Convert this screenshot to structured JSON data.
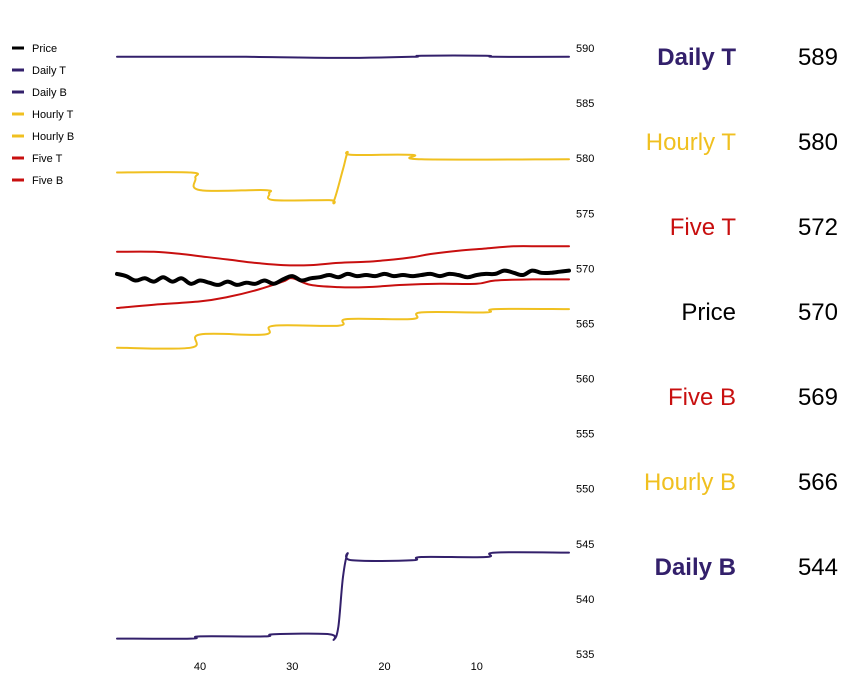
{
  "chart_data": {
    "type": "line",
    "title": "",
    "xlabel": "",
    "ylabel": "",
    "x_reversed": true,
    "xlim": [
      49,
      0
    ],
    "ylim": [
      535,
      590
    ],
    "grid": false,
    "legend_placement": "top-left",
    "y_axis_side": "right",
    "x_ticks": [
      40,
      30,
      20,
      10
    ],
    "y_ticks": [
      590,
      585,
      580,
      575,
      570,
      565,
      560,
      555,
      550,
      545,
      540,
      535
    ],
    "colors": {
      "price": "#000000",
      "daily": "#33206b",
      "hourly": "#f0c020",
      "five": "#c80f0f"
    },
    "series": [
      {
        "name": "Price",
        "key": "price",
        "stroke_width": 4,
        "points": [
          [
            49,
            569.5
          ],
          [
            48,
            569.3
          ],
          [
            47,
            568.9
          ],
          [
            46,
            569.1
          ],
          [
            45,
            568.8
          ],
          [
            44,
            569.2
          ],
          [
            43,
            568.8
          ],
          [
            42,
            569.1
          ],
          [
            41,
            568.6
          ],
          [
            40,
            568.9
          ],
          [
            39,
            568.7
          ],
          [
            38,
            568.5
          ],
          [
            37,
            568.8
          ],
          [
            36,
            568.5
          ],
          [
            35,
            568.7
          ],
          [
            34,
            568.6
          ],
          [
            33,
            568.9
          ],
          [
            32,
            568.6
          ],
          [
            31,
            569.0
          ],
          [
            30,
            569.3
          ],
          [
            29,
            568.9
          ],
          [
            28,
            569.1
          ],
          [
            27,
            569.2
          ],
          [
            26,
            569.4
          ],
          [
            25,
            569.2
          ],
          [
            24,
            569.5
          ],
          [
            23,
            569.3
          ],
          [
            22,
            569.4
          ],
          [
            21,
            569.3
          ],
          [
            20,
            569.5
          ],
          [
            19,
            569.3
          ],
          [
            18,
            569.4
          ],
          [
            17,
            569.3
          ],
          [
            16,
            569.4
          ],
          [
            15,
            569.5
          ],
          [
            14,
            569.3
          ],
          [
            13,
            569.5
          ],
          [
            12,
            569.4
          ],
          [
            11,
            569.2
          ],
          [
            10,
            569.4
          ],
          [
            9,
            569.5
          ],
          [
            8,
            569.5
          ],
          [
            7,
            569.8
          ],
          [
            6,
            569.6
          ],
          [
            5,
            569.4
          ],
          [
            4,
            569.8
          ],
          [
            3,
            569.6
          ],
          [
            2,
            569.6
          ],
          [
            1,
            569.7
          ],
          [
            0,
            569.8
          ]
        ]
      },
      {
        "name": "Daily T",
        "key": "daily",
        "stroke_width": 2,
        "points": [
          [
            49,
            589.2
          ],
          [
            40,
            589.2
          ],
          [
            35,
            589.2
          ],
          [
            25,
            589.1
          ],
          [
            17,
            589.2
          ],
          [
            16,
            589.3
          ],
          [
            9,
            589.3
          ],
          [
            8,
            589.2
          ],
          [
            0,
            589.2
          ]
        ]
      },
      {
        "name": "Daily B",
        "key": "daily",
        "stroke_width": 2,
        "points": [
          [
            49,
            536.4
          ],
          [
            41,
            536.4
          ],
          [
            40,
            536.6
          ],
          [
            33,
            536.6
          ],
          [
            32,
            536.8
          ],
          [
            26,
            536.8
          ],
          [
            25.5,
            536.3
          ],
          [
            25,
            537.5
          ],
          [
            24.5,
            542
          ],
          [
            24,
            544.1
          ],
          [
            23.5,
            543.5
          ],
          [
            17,
            543.5
          ],
          [
            16,
            543.8
          ],
          [
            9,
            543.8
          ],
          [
            8,
            544.2
          ],
          [
            0,
            544.2
          ]
        ]
      },
      {
        "name": "Hourly T",
        "key": "hourly",
        "stroke_width": 2,
        "points": [
          [
            49,
            578.7
          ],
          [
            41,
            578.7
          ],
          [
            40.5,
            578.2
          ],
          [
            40,
            577.1
          ],
          [
            33,
            577.1
          ],
          [
            32.5,
            576.8
          ],
          [
            32,
            576.2
          ],
          [
            26,
            576.2
          ],
          [
            25.5,
            576.1
          ],
          [
            24.5,
            579
          ],
          [
            24,
            580.5
          ],
          [
            23.5,
            580.3
          ],
          [
            17,
            580.3
          ],
          [
            16,
            579.9
          ],
          [
            0,
            579.9
          ]
        ]
      },
      {
        "name": "Hourly B",
        "key": "hourly",
        "stroke_width": 2,
        "points": [
          [
            49,
            562.8
          ],
          [
            41,
            562.8
          ],
          [
            40,
            564.0
          ],
          [
            33,
            564.0
          ],
          [
            32,
            564.8
          ],
          [
            25,
            564.8
          ],
          [
            24,
            565.4
          ],
          [
            17,
            565.4
          ],
          [
            16,
            566.0
          ],
          [
            9,
            566.0
          ],
          [
            8,
            566.3
          ],
          [
            0,
            566.3
          ]
        ]
      },
      {
        "name": "Five T",
        "key": "five",
        "stroke_width": 2,
        "points": [
          [
            49,
            571.5
          ],
          [
            45,
            571.5
          ],
          [
            42,
            571.3
          ],
          [
            40,
            571.1
          ],
          [
            37,
            570.8
          ],
          [
            34,
            570.5
          ],
          [
            31,
            570.3
          ],
          [
            28,
            570.3
          ],
          [
            25,
            570.5
          ],
          [
            22,
            570.6
          ],
          [
            19,
            570.8
          ],
          [
            17,
            571.0
          ],
          [
            15,
            571.3
          ],
          [
            12,
            571.6
          ],
          [
            9,
            571.8
          ],
          [
            6,
            572.0
          ],
          [
            3,
            572.0
          ],
          [
            0,
            572.0
          ]
        ]
      },
      {
        "name": "Five B",
        "key": "five",
        "stroke_width": 2,
        "points": [
          [
            49,
            566.4
          ],
          [
            45,
            566.7
          ],
          [
            40,
            567.0
          ],
          [
            37,
            567.4
          ],
          [
            34,
            568.0
          ],
          [
            31,
            568.8
          ],
          [
            30,
            569.1
          ],
          [
            28,
            568.5
          ],
          [
            25,
            568.3
          ],
          [
            22,
            568.3
          ],
          [
            18,
            568.5
          ],
          [
            14,
            568.6
          ],
          [
            10,
            568.6
          ],
          [
            8,
            568.9
          ],
          [
            4,
            569.0
          ],
          [
            0,
            569.0
          ]
        ]
      }
    ],
    "legend": [
      {
        "label": "Price",
        "key": "price"
      },
      {
        "label": "Daily T",
        "key": "daily"
      },
      {
        "label": "Daily B",
        "key": "daily"
      },
      {
        "label": "Hourly T",
        "key": "hourly"
      },
      {
        "label": "Hourly B",
        "key": "hourly"
      },
      {
        "label": "Five T",
        "key": "five"
      },
      {
        "label": "Five B",
        "key": "five"
      }
    ],
    "summary": [
      {
        "label": "Daily T",
        "value": "589",
        "key": "daily",
        "bold": true
      },
      {
        "label": "Hourly T",
        "value": "580",
        "key": "hourly",
        "bold": false
      },
      {
        "label": "Five T",
        "value": "572",
        "key": "five",
        "bold": false
      },
      {
        "label": "Price",
        "value": "570",
        "key": "price",
        "bold": false
      },
      {
        "label": "Five B",
        "value": "569",
        "key": "five",
        "bold": false
      },
      {
        "label": "Hourly B",
        "value": "566",
        "key": "hourly",
        "bold": false
      },
      {
        "label": "Daily B",
        "value": "544",
        "key": "daily",
        "bold": true
      }
    ]
  }
}
